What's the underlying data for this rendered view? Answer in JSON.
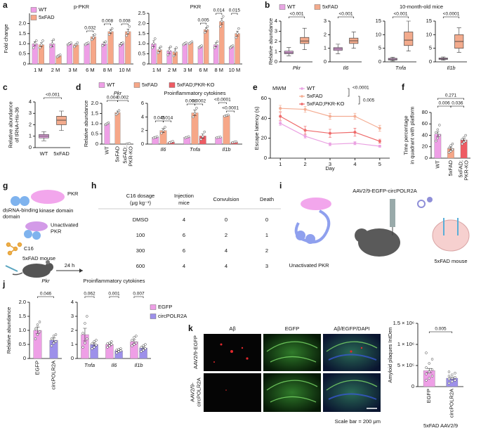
{
  "panel_labels": [
    "a",
    "b",
    "c",
    "d",
    "e",
    "f",
    "g",
    "h",
    "i",
    "j",
    "k"
  ],
  "chart_data": [
    {
      "type": "bar",
      "title": "p-PKR",
      "ylabel": "Fold change",
      "categories": [
        "1 M",
        "2 M",
        "3 M",
        "6 M",
        "8 M",
        "10 M"
      ],
      "ylim": [
        0,
        2.5
      ],
      "yticks": [
        0,
        0.5,
        {
          "value": 1,
          "label": "1.0"
        },
        1.5,
        {
          "value": 2,
          "label": "2.0"
        }
      ],
      "series": [
        {
          "name": "WT",
          "color": "#ee9fe6",
          "values": [
            1.0,
            1.0,
            1.0,
            1.0,
            1.0,
            1.0
          ],
          "errors": [
            0.1,
            0.15,
            0.05,
            0.05,
            0.08,
            0.06
          ],
          "points": [
            [
              0.8,
              1.0,
              1.15
            ],
            [
              0.85,
              1.0,
              1.2
            ],
            [
              0.95,
              1.0,
              1.05
            ],
            [
              0.95,
              1.0,
              1.05
            ],
            [
              0.9,
              1.0,
              1.1
            ],
            [
              0.9,
              1.0,
              1.05
            ]
          ]
        },
        {
          "name": "5xFAD",
          "color": "#f6a788",
          "values": [
            0.95,
            0.4,
            0.95,
            1.35,
            1.6,
            1.6
          ],
          "errors": [
            0.1,
            0.05,
            0.05,
            0.1,
            0.1,
            0.12
          ],
          "points": [
            [
              0.8,
              0.95,
              1.15
            ],
            [
              0.35,
              0.4,
              0.45
            ],
            [
              0.85,
              0.95,
              1.05
            ],
            [
              1.2,
              1.3,
              1.45
            ],
            [
              1.45,
              1.6,
              1.75
            ],
            [
              1.4,
              1.55,
              1.85
            ]
          ]
        }
      ],
      "pvalues": [
        "0.032",
        "0.008",
        "0.008"
      ]
    },
    {
      "type": "bar",
      "title": "PKR",
      "categories": [
        "1 M",
        "2 M",
        "3 M",
        "6 M",
        "8 M",
        "10 M"
      ],
      "ylim": [
        0,
        2.5
      ],
      "yticks": [
        0,
        0.5,
        {
          "value": 1,
          "label": "1.0"
        },
        1.5,
        {
          "value": 2,
          "label": "2.0"
        },
        2.5
      ],
      "series": [
        {
          "color": "#ee9fe6",
          "values": [
            1.0,
            0.65,
            1.0,
            0.85,
            0.95,
            0.85
          ],
          "errors": [
            0.15,
            0.15,
            0.05,
            0.05,
            0.1,
            0.05
          ],
          "points": [
            [
              0.8,
              1.0,
              1.25
            ],
            [
              0.45,
              0.65,
              0.85
            ],
            [
              0.95,
              1.0,
              1.05
            ],
            [
              0.8,
              0.85,
              0.9
            ],
            [
              0.8,
              0.95,
              1.1
            ],
            [
              0.8,
              0.85,
              0.9
            ]
          ]
        },
        {
          "color": "#f6a788",
          "values": [
            0.7,
            0.6,
            1.05,
            1.7,
            2.1,
            1.5
          ],
          "errors": [
            0.1,
            0.15,
            0.03,
            0.1,
            0.15,
            0.12
          ],
          "points": [
            [
              0.55,
              0.7,
              0.85
            ],
            [
              0.4,
              0.6,
              0.8
            ],
            [
              1.0,
              1.05,
              1.1
            ],
            [
              1.55,
              1.7,
              1.85
            ],
            [
              1.85,
              2.1,
              2.35
            ],
            [
              1.3,
              1.5,
              1.75
            ]
          ]
        }
      ],
      "pvalues": [
        "0.005",
        "0.014",
        "0.015"
      ]
    },
    {
      "type": "box",
      "xlabel": "Pkr",
      "ylabel": "Relative abundance",
      "annotation": "10-month-old mice",
      "ylim": [
        0,
        4
      ],
      "yticks": [
        0,
        1,
        2,
        3,
        4
      ],
      "boxes": [
        {
          "name": "WT",
          "color": "#e8a6e3",
          "stats": [
            0.6,
            0.8,
            0.9,
            1.05,
            1.4
          ]
        },
        {
          "name": "5xFAD",
          "color": "#f3ab8d",
          "stats": [
            1.2,
            1.8,
            2.05,
            2.4,
            3.3
          ]
        }
      ],
      "pvalues": [
        "<0.001"
      ]
    },
    {
      "type": "box",
      "xlabel": "Il6",
      "ylim": [
        0,
        3
      ],
      "yticks": [
        0,
        1,
        2,
        3
      ],
      "boxes": [
        {
          "color": "#e8a6e3",
          "stats": [
            0.6,
            0.85,
            0.95,
            1.05,
            1.3
          ]
        },
        {
          "color": "#f3ab8d",
          "stats": [
            1.0,
            1.35,
            1.55,
            1.75,
            2.2
          ]
        }
      ],
      "pvalues": [
        "<0.001"
      ]
    },
    {
      "type": "box",
      "xlabel": "Tnfa",
      "ylim": [
        0,
        15
      ],
      "yticks": [
        0,
        5,
        10,
        15
      ],
      "boxes": [
        {
          "color": "#e8a6e3",
          "stats": [
            0.3,
            0.7,
            1.0,
            1.3,
            1.7
          ]
        },
        {
          "color": "#f3ab8d",
          "stats": [
            4,
            6,
            8,
            11,
            15
          ]
        }
      ],
      "pvalues": [
        "<0.001"
      ]
    },
    {
      "type": "box",
      "xlabel": "Il1b",
      "ylim": [
        0,
        15
      ],
      "yticks": [
        0,
        5,
        10,
        15
      ],
      "boxes": [
        {
          "color": "#e8a6e3",
          "stats": [
            0.6,
            0.9,
            1.1,
            1.4,
            1.8
          ]
        },
        {
          "color": "#f3ab8d",
          "stats": [
            3.5,
            5,
            7.5,
            10,
            12.5
          ]
        }
      ],
      "pvalues": [
        "<0.0001"
      ]
    },
    {
      "type": "box",
      "ylabel": [
        "Relative abundance",
        "of tRNA-His-36"
      ],
      "ylim": [
        0,
        4
      ],
      "yticks": [
        0,
        1,
        2,
        3,
        4
      ],
      "boxes": [
        {
          "name": "WT",
          "color": "#e8a6e3",
          "stats": [
            0.6,
            0.85,
            1.0,
            1.15,
            1.4
          ]
        },
        {
          "name": "5xFAD",
          "color": "#f3ab8d",
          "stats": [
            1.5,
            2.0,
            2.4,
            2.75,
            3.2
          ]
        }
      ],
      "pvalues": [
        "<0.001"
      ]
    },
    {
      "type": "bar",
      "title": "Pkr",
      "ylabel": "Relative abundance",
      "categories": [
        "WT",
        "5xFAD",
        [
          "5xFAD;",
          "PKR-KO"
        ]
      ],
      "ylim": [
        0,
        2
      ],
      "yticks": [
        0,
        0.5,
        {
          "value": 1,
          "label": "1.0"
        },
        1.5,
        {
          "value": 2,
          "label": "2.0"
        }
      ],
      "series": [
        {
          "colors": [
            "#ee9fe6",
            "#f6a788",
            "#ee5b63"
          ],
          "values": [
            1.0,
            1.55,
            0.02
          ],
          "errors": [
            0.03,
            0.07,
            0.01
          ],
          "points": [
            [
              0.95,
              1.0,
              1.05
            ],
            [
              1.45,
              1.5,
              1.65
            ],
            [
              0.01,
              0.02,
              0.03
            ]
          ]
        }
      ],
      "pvalues": [
        "0.004",
        "0.002"
      ]
    },
    {
      "type": "bar",
      "title": "Proinflammatory cytokines",
      "categories": [
        "Il6",
        "Tnfa",
        "Il1b"
      ],
      "ylim": [
        0,
        6
      ],
      "yticks": [
        0,
        2,
        4,
        6
      ],
      "series": [
        {
          "name": "WT",
          "color": "#ee9fe6",
          "values": [
            1.0,
            1.0,
            1.0
          ],
          "errors": [
            0.1,
            0.08,
            0.05
          ],
          "points": [
            [
              0.9,
              1.0,
              1.1
            ],
            [
              0.9,
              1.0,
              1.1
            ],
            [
              0.95,
              1.0,
              1.05
            ]
          ]
        },
        {
          "name": "5xFAD",
          "color": "#f6a788",
          "values": [
            2.0,
            4.6,
            4.2
          ],
          "errors": [
            0.3,
            0.4,
            0.1
          ],
          "points": [
            [
              1.6,
              2.0,
              2.5
            ],
            [
              4.0,
              4.5,
              5.3
            ],
            [
              4.1,
              4.2,
              4.3
            ]
          ]
        },
        {
          "name": "5xFAD;PKR-KO",
          "color": "#ee5b63",
          "values": [
            0.3,
            1.2,
            0.3
          ],
          "errors": [
            0.1,
            0.3,
            0.05
          ],
          "points": [
            [
              0.2,
              0.3,
              0.4
            ],
            [
              0.7,
              1.1,
              1.8
            ],
            [
              0.25,
              0.3,
              0.35
            ]
          ]
        }
      ],
      "pvalues": [
        "0.045",
        "0.014",
        "0.008",
        "0.0002",
        "<0.0001",
        "<0.0001"
      ]
    },
    {
      "type": "line",
      "ylabel": "Escape latency (s)",
      "xlabel": "Day",
      "legend_title": "MWM",
      "x": [
        1,
        2,
        3,
        4,
        5
      ],
      "xlim": [
        0.6,
        5.4
      ],
      "xticks": [
        1,
        2,
        3,
        4,
        5
      ],
      "ylim": [
        0,
        60
      ],
      "yticks": [
        0,
        20,
        40,
        60
      ],
      "series": [
        {
          "name": "WT",
          "color": "#eaa2e2",
          "values": [
            35,
            22,
            14,
            15,
            12
          ],
          "errors": [
            2,
            2,
            1.5,
            1.5,
            1
          ]
        },
        {
          "name": "5xFAD",
          "color": "#f4ad93",
          "values": [
            50,
            49,
            42,
            42,
            30
          ],
          "errors": [
            3,
            3,
            3,
            3,
            3
          ]
        },
        {
          "name": "5xFAD;PKR-KO",
          "color": "#ee6a6a",
          "values": [
            42,
            28,
            25,
            26,
            17
          ],
          "errors": [
            4,
            4,
            4,
            4,
            2
          ]
        }
      ],
      "pvalues": [
        "<0.0001",
        "0.005"
      ]
    },
    {
      "type": "bar",
      "ylabel": [
        "Time percentage",
        "in quadrant with platform"
      ],
      "categories": [
        "WT",
        "5xFAD",
        [
          "5xFAD;",
          "PKR-KO"
        ]
      ],
      "ylim": [
        0,
        80
      ],
      "yticks": [
        0,
        20,
        40,
        60,
        80
      ],
      "series": [
        {
          "colors": [
            "#ee9fe6",
            "#f6a788",
            "#ee5b63"
          ],
          "values": [
            42,
            17,
            32
          ],
          "errors": [
            4,
            2.5,
            2.5
          ],
          "points": [
            [
              30,
              35,
              40,
              45,
              50,
              58
            ],
            [
              10,
              12,
              15,
              18,
              22,
              25
            ],
            [
              25,
              28,
              30,
              33,
              36,
              40
            ]
          ]
        }
      ],
      "pvalues": [
        "0.271",
        "0.006",
        "0.036"
      ]
    },
    {
      "type": "bar",
      "title": "Pkr",
      "ylabel": "Relative abundance",
      "categories": [
        "EGFP",
        "circPOLR2A"
      ],
      "ylim": [
        0,
        2
      ],
      "yticks": [
        0,
        0.5,
        {
          "value": 1,
          "label": "1.0"
        },
        1.5,
        {
          "value": 2,
          "label": "2.0"
        }
      ],
      "series": [
        {
          "colors": [
            "#ee9fe6",
            "#9d90ea"
          ],
          "values": [
            1.0,
            0.65
          ],
          "errors": [
            0.12,
            0.08
          ],
          "points": [
            [
              0.7,
              0.85,
              0.95,
              1.05,
              1.2,
              1.3
            ],
            [
              0.45,
              0.55,
              0.6,
              0.7,
              0.8,
              0.85
            ]
          ]
        }
      ],
      "pvalues": [
        "0.046"
      ]
    },
    {
      "type": "bar",
      "title": "Proinflammatory cytokines",
      "categories": [
        "Tnfa",
        "Il6",
        "Il1b"
      ],
      "ylim": [
        0,
        4
      ],
      "yticks": [
        0,
        1,
        2,
        3,
        4
      ],
      "series": [
        {
          "name": "EGFP",
          "color": "#ee9fe6",
          "values": [
            1.7,
            1.0,
            1.2
          ],
          "errors": [
            0.45,
            0.1,
            0.15
          ],
          "points": [
            [
              0.8,
              1.1,
              1.4,
              1.8,
              2.5,
              3.0
            ],
            [
              0.8,
              0.9,
              1.0,
              1.05,
              1.1,
              1.2
            ],
            [
              0.9,
              1.0,
              1.1,
              1.3,
              1.5,
              1.6
            ]
          ]
        },
        {
          "name": "circPOLR2A",
          "color": "#9d90ea",
          "values": [
            1.0,
            0.55,
            0.75
          ],
          "errors": [
            0.1,
            0.05,
            0.08
          ],
          "points": [
            [
              0.7,
              0.8,
              0.95,
              1.05,
              1.2,
              1.3
            ],
            [
              0.4,
              0.5,
              0.55,
              0.6,
              0.65,
              0.7
            ],
            [
              0.5,
              0.6,
              0.7,
              0.8,
              0.9,
              1.0
            ]
          ]
        }
      ],
      "pvalues": [
        "0.062",
        "0.001",
        "0.007"
      ]
    },
    {
      "type": "bar",
      "ylabel": "Amyloid plaques IntDen",
      "xlabel": "5xFAD AAV2/9",
      "categories": [
        "EGFP",
        "circPOLR2A"
      ],
      "ylim": [
        0,
        1500000
      ],
      "yticks": [
        0,
        {
          "value": 500000,
          "label": "5 × 10⁵"
        },
        {
          "value": 1000000,
          "label": "1 × 10⁶"
        },
        {
          "value": 1500000,
          "label": "1.5 × 10⁶"
        }
      ],
      "series": [
        {
          "colors": [
            "#ee9fe6",
            "#9d90ea"
          ],
          "values": [
            380000,
            200000
          ],
          "errors": [
            50000,
            25000
          ],
          "points": [
            [
              150000,
              200000,
              250000,
              300000,
              350000,
              400000,
              450000,
              550000,
              650000,
              800000
            ],
            [
              80000,
              120000,
              150000,
              180000,
              200000,
              220000,
              250000,
              280000,
              320000,
              350000
            ]
          ]
        }
      ],
      "pvalues": [
        "0.005"
      ]
    }
  ],
  "diagram_g": {
    "protein": "PKR",
    "domain_1": [
      "dsRNA-binding",
      "domain"
    ],
    "domain_2": "kinase domain",
    "state": [
      "Unactivated",
      "PKR"
    ],
    "compound": "C16",
    "mouse": "5xFAD mouse",
    "time": "24 h"
  },
  "table": {
    "header": [
      [
        "C16 dosage",
        "(μg kg⁻¹)"
      ],
      [
        "Injection",
        "mice"
      ],
      [
        "Convulsion"
      ],
      [
        "Death"
      ]
    ],
    "rows": [
      [
        "DMSO",
        4,
        0,
        0
      ],
      [
        100,
        6,
        2,
        1
      ],
      [
        300,
        6,
        4,
        2
      ],
      [
        600,
        4,
        4,
        3
      ]
    ]
  },
  "diagram_i": {
    "title": "AAV2/9-EGFP-circPOLR2A",
    "left_label": "Unactivated PKR",
    "right_label": "5xFAD mouse"
  },
  "micrographs": {
    "columns": [
      "Aβ",
      "EGFP",
      "Aβ/EGFP/DAPI"
    ],
    "rows": [
      [
        "AAV2/9-EGFP"
      ],
      [
        "AAV2/9-",
        "circPOLR2A"
      ]
    ],
    "scale_bar": "Scale bar = 200 μm"
  }
}
